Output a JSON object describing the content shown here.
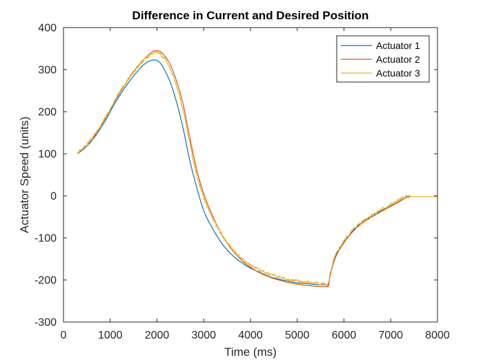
{
  "chart_data": {
    "type": "line",
    "title": "Difference in Current and Desired Position",
    "xlabel": "Time (ms)",
    "ylabel": "Actuator Speed (units)",
    "xlim": [
      0,
      8000
    ],
    "ylim": [
      -300,
      400
    ],
    "xticks": [
      0,
      1000,
      2000,
      3000,
      4000,
      5000,
      6000,
      7000,
      8000
    ],
    "yticks": [
      -300,
      -200,
      -100,
      0,
      100,
      200,
      300,
      400
    ],
    "grid": false,
    "legend_position": "top-right",
    "series": [
      {
        "name": "Actuator 1",
        "color": "#0072BD",
        "noise": 0,
        "points": [
          [
            300,
            100
          ],
          [
            500,
            118
          ],
          [
            700,
            145
          ],
          [
            900,
            180
          ],
          [
            1100,
            220
          ],
          [
            1300,
            255
          ],
          [
            1500,
            285
          ],
          [
            1700,
            310
          ],
          [
            1850,
            321
          ],
          [
            1950,
            323
          ],
          [
            2050,
            318
          ],
          [
            2150,
            302
          ],
          [
            2300,
            265
          ],
          [
            2450,
            210
          ],
          [
            2550,
            165
          ],
          [
            2700,
            85
          ],
          [
            2850,
            20
          ],
          [
            3000,
            -35
          ],
          [
            3200,
            -80
          ],
          [
            3400,
            -115
          ],
          [
            3600,
            -140
          ],
          [
            3800,
            -158
          ],
          [
            4000,
            -172
          ],
          [
            4200,
            -182
          ],
          [
            4400,
            -192
          ],
          [
            4600,
            -198
          ],
          [
            4800,
            -203
          ],
          [
            5000,
            -207
          ],
          [
            5200,
            -209
          ],
          [
            5400,
            -211
          ],
          [
            5600,
            -212
          ],
          [
            5660,
            -213
          ],
          [
            5700,
            -190
          ],
          [
            5800,
            -150
          ],
          [
            6000,
            -110
          ],
          [
            6200,
            -82
          ],
          [
            6400,
            -62
          ],
          [
            6600,
            -48
          ],
          [
            6800,
            -35
          ],
          [
            7000,
            -24
          ],
          [
            7200,
            -12
          ],
          [
            7350,
            -2
          ],
          [
            7420,
            0
          ]
        ]
      },
      {
        "name": "Actuator 2",
        "color": "#D95319",
        "noise": 0,
        "points": [
          [
            300,
            100
          ],
          [
            500,
            120
          ],
          [
            700,
            148
          ],
          [
            900,
            185
          ],
          [
            1100,
            225
          ],
          [
            1300,
            262
          ],
          [
            1500,
            295
          ],
          [
            1700,
            322
          ],
          [
            1850,
            338
          ],
          [
            1950,
            345
          ],
          [
            2050,
            344
          ],
          [
            2150,
            335
          ],
          [
            2300,
            308
          ],
          [
            2450,
            262
          ],
          [
            2550,
            222
          ],
          [
            2700,
            140
          ],
          [
            2850,
            62
          ],
          [
            3000,
            5
          ],
          [
            3200,
            -50
          ],
          [
            3400,
            -95
          ],
          [
            3600,
            -128
          ],
          [
            3800,
            -152
          ],
          [
            4000,
            -170
          ],
          [
            4200,
            -183
          ],
          [
            4400,
            -193
          ],
          [
            4600,
            -200
          ],
          [
            4800,
            -206
          ],
          [
            5000,
            -210
          ],
          [
            5200,
            -213
          ],
          [
            5400,
            -215
          ],
          [
            5600,
            -216
          ],
          [
            5660,
            -216
          ],
          [
            5700,
            -192
          ],
          [
            5800,
            -152
          ],
          [
            6000,
            -112
          ],
          [
            6200,
            -84
          ],
          [
            6400,
            -64
          ],
          [
            6600,
            -50
          ],
          [
            6800,
            -37
          ],
          [
            7000,
            -25
          ],
          [
            7200,
            -13
          ],
          [
            7350,
            -3
          ],
          [
            7420,
            0
          ]
        ]
      },
      {
        "name": "Actuator 3",
        "color": "#EDB120",
        "noise": 4,
        "points": [
          [
            300,
            103
          ],
          [
            500,
            122
          ],
          [
            700,
            150
          ],
          [
            900,
            187
          ],
          [
            1100,
            227
          ],
          [
            1300,
            263
          ],
          [
            1500,
            295
          ],
          [
            1700,
            320
          ],
          [
            1850,
            335
          ],
          [
            1950,
            341
          ],
          [
            2050,
            339
          ],
          [
            2150,
            328
          ],
          [
            2300,
            298
          ],
          [
            2450,
            250
          ],
          [
            2550,
            208
          ],
          [
            2700,
            125
          ],
          [
            2850,
            50
          ],
          [
            3000,
            -5
          ],
          [
            3200,
            -55
          ],
          [
            3400,
            -95
          ],
          [
            3600,
            -125
          ],
          [
            3800,
            -148
          ],
          [
            4000,
            -165
          ],
          [
            4200,
            -177
          ],
          [
            4400,
            -186
          ],
          [
            4600,
            -193
          ],
          [
            4800,
            -199
          ],
          [
            5000,
            -203
          ],
          [
            5200,
            -206
          ],
          [
            5400,
            -208
          ],
          [
            5600,
            -210
          ],
          [
            5660,
            -212
          ],
          [
            5700,
            -188
          ],
          [
            5800,
            -148
          ],
          [
            6000,
            -108
          ],
          [
            6200,
            -80
          ],
          [
            6400,
            -60
          ],
          [
            6600,
            -46
          ],
          [
            6800,
            -33
          ],
          [
            7000,
            -21
          ],
          [
            7200,
            -9
          ],
          [
            7350,
            -2
          ],
          [
            7420,
            -2
          ],
          [
            7500,
            -2
          ],
          [
            7700,
            -2
          ],
          [
            7900,
            -2
          ],
          [
            8000,
            -2
          ]
        ]
      }
    ]
  }
}
